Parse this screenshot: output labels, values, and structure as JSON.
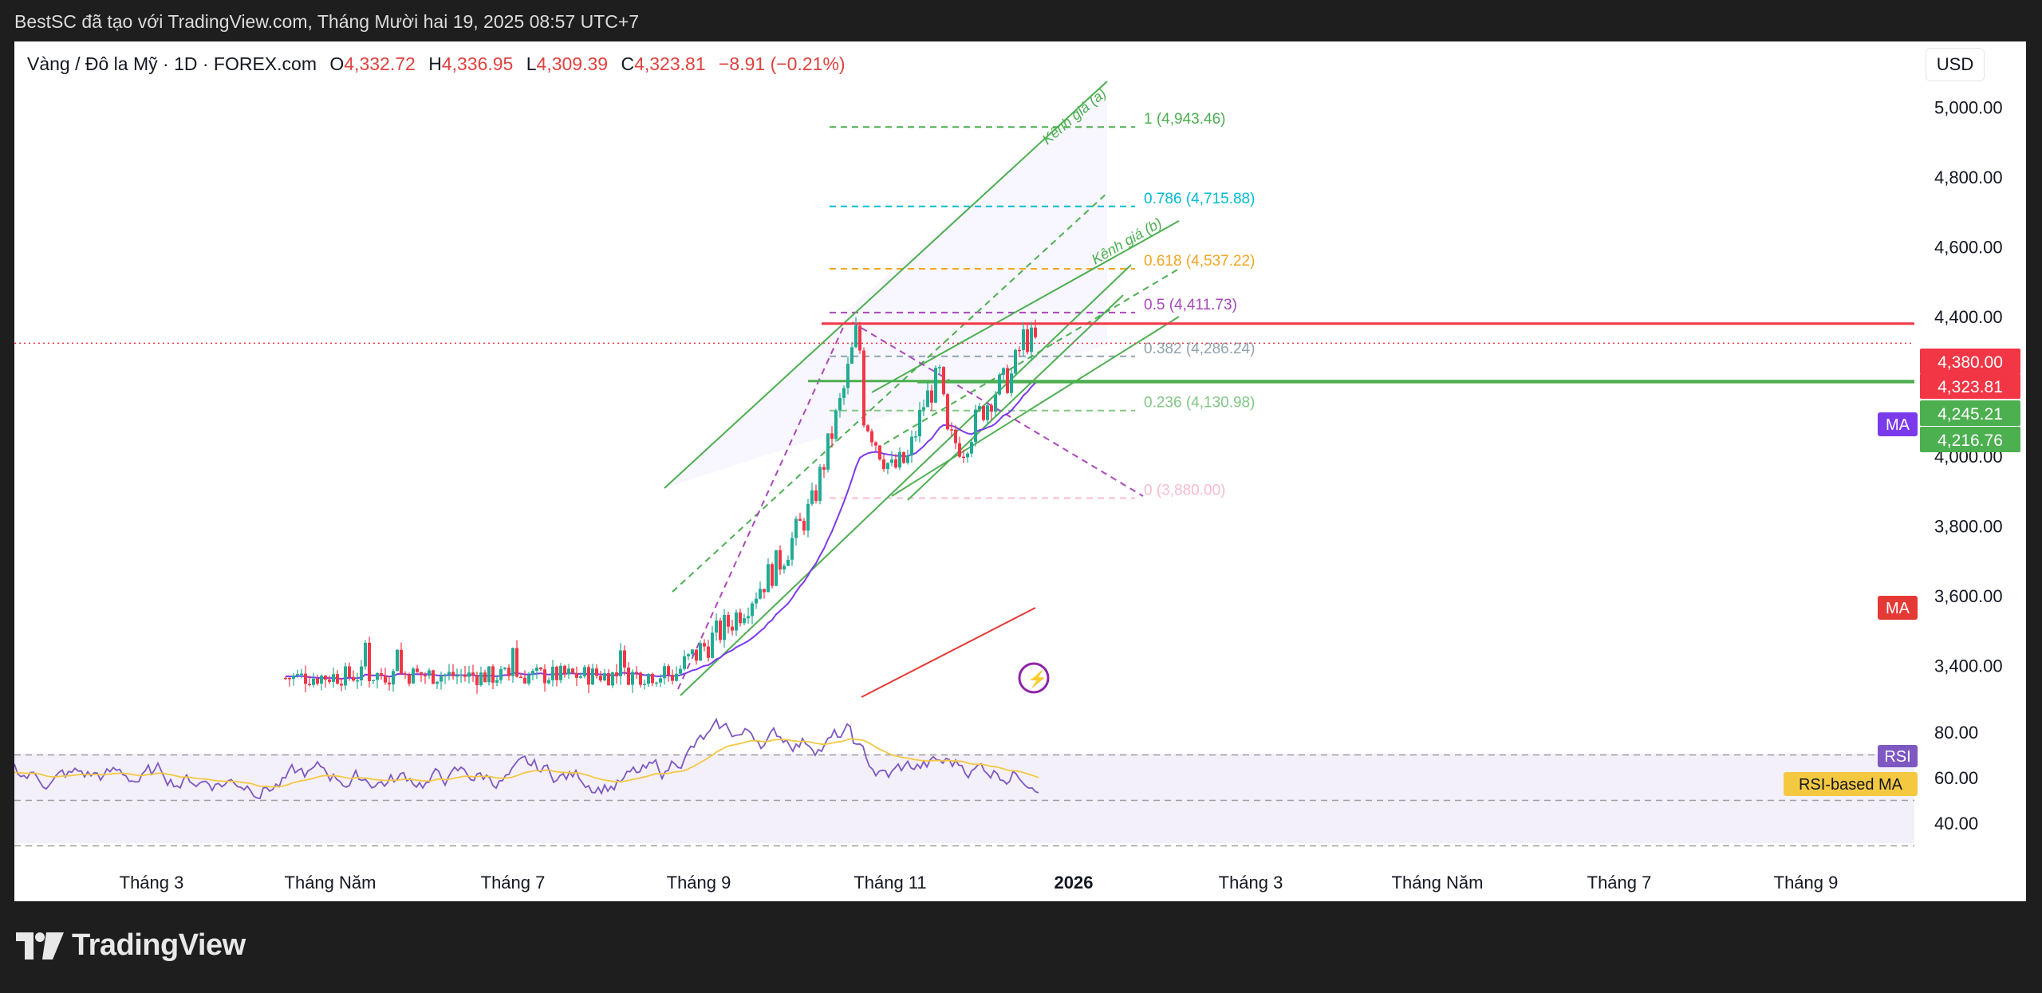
{
  "caption": "BestSC đã tạo với TradingView.com, Tháng Mười hai 19, 2025 08:57 UTC+7",
  "header": {
    "symbol": "Vàng / Đô la Mỹ · 1D · FOREX.com",
    "o_label": "O",
    "o_value": "4,332.72",
    "h_label": "H",
    "h_value": "4,336.95",
    "l_label": "L",
    "l_value": "4,309.39",
    "c_label": "C",
    "c_value": "4,323.81",
    "change": "−8.91 (−0.21%)"
  },
  "currency": "USD",
  "brand": {
    "name": "TradingView",
    "logo_icon": "tradingview-logo-icon"
  },
  "colors": {
    "up": "#22ab94",
    "down": "#f23645",
    "price_line": "#f23645",
    "support": "#4caf50",
    "rsi": "#7e57c2",
    "rsi_ma": "#f5c842",
    "ma_purple": "#7c3aed",
    "ma_red": "#e53935"
  },
  "chart_data": {
    "type": "candlestick",
    "price_axis": {
      "min": 3300,
      "max": 5100,
      "ticks": [
        "5,000.00",
        "4,800.00",
        "4,600.00",
        "4,400.00",
        "4,200.00",
        "4,000.00",
        "3,800.00",
        "3,600.00",
        "3,400.00"
      ],
      "tick_values": [
        5000,
        4800,
        4600,
        4400,
        4200,
        4000,
        3800,
        3600,
        3400
      ]
    },
    "time_axis": {
      "labels": [
        "Tháng 3",
        "Tháng Năm",
        "Tháng 7",
        "Tháng 9",
        "Tháng 11",
        "2026",
        "Tháng 3",
        "Tháng Năm",
        "Tháng 7",
        "Tháng 9"
      ],
      "bold": [
        false,
        false,
        false,
        false,
        false,
        true,
        false,
        false,
        false,
        false
      ]
    },
    "price_markers": [
      {
        "label": "4,380.00",
        "value": 4380,
        "color": "#f23645"
      },
      {
        "label": "4,323.81",
        "value": 4323.81,
        "color": "#f23645"
      },
      {
        "label": "4,245.21",
        "value": 4245.21,
        "color": "#4caf50"
      },
      {
        "label": "4,216.76",
        "value": 4216.76,
        "color": "#4caf50"
      }
    ],
    "ma_badges": [
      {
        "label": "MA",
        "color": "#7c3aed"
      },
      {
        "label": "MA",
        "color": "#e53935"
      }
    ],
    "fibonacci": [
      {
        "label": "1 (4,943.46)",
        "value": 4943.46,
        "color": "#4caf50"
      },
      {
        "label": "0.786 (4,715.88)",
        "value": 4715.88,
        "color": "#00bcd4"
      },
      {
        "label": "0.618 (4,537.22)",
        "value": 4537.22,
        "color": "#f5a623"
      },
      {
        "label": "0.5 (4,411.73)",
        "value": 4411.73,
        "color": "#ab47bc"
      },
      {
        "label": "0.382 (4,286.24)",
        "value": 4286.24,
        "color": "#90a4ae"
      },
      {
        "label": "0.236 (4,130.98)",
        "value": 4130.98,
        "color": "#81c784"
      },
      {
        "label": "0 (3,880.00)",
        "value": 3880.0,
        "color": "#f8bbd0"
      }
    ],
    "channel_labels": [
      "Kênh giá (a)",
      "Kênh giá (b)"
    ],
    "rsi": {
      "ticks": [
        "80.00",
        "60.00",
        "40.00"
      ],
      "tick_values": [
        80,
        60,
        40
      ],
      "badge": "RSI",
      "ma_badge": "RSI-based MA",
      "bands": [
        70,
        50,
        30
      ]
    }
  }
}
